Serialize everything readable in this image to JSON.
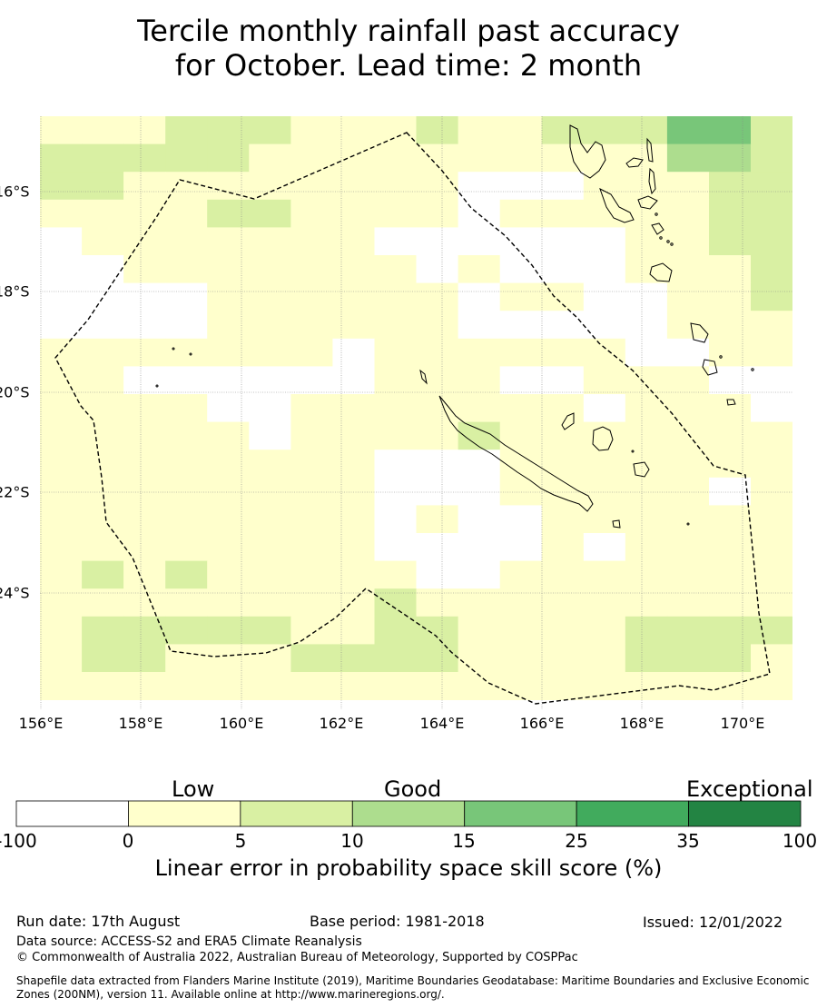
{
  "title": {
    "line1": "Tercile monthly rainfall past accuracy",
    "line2": "for October. Lead time: 2 month"
  },
  "map": {
    "longitude_labels": [
      "156°E",
      "158°E",
      "160°E",
      "162°E",
      "164°E",
      "166°E",
      "168°E",
      "170°E"
    ],
    "latitude_labels": [
      "16°S",
      "18°S",
      "20°S",
      "22°S",
      "24°S"
    ],
    "boundary": "dashed EEZ outline",
    "coastlines": "New Caledonia, Loyalty Islands, Vanuatu",
    "gridlines": true
  },
  "colorbar": {
    "categories": [
      "Low",
      "Good",
      "Exceptional"
    ],
    "boundaries": [
      "-100",
      "0",
      "5",
      "10",
      "15",
      "25",
      "35",
      "100"
    ],
    "colors": [
      "#ffffff",
      "#ffffcc",
      "#d9f0a3",
      "#addd8e",
      "#78c679",
      "#41ab5d",
      "#238443"
    ],
    "title": "Linear error in probability space skill score (%)"
  },
  "footer": {
    "run_date": "Run date: 17th August",
    "base_period": "Base period: 1981-2018",
    "issued": "Issued: 12/01/2022",
    "data_source": "Data source: ACCESS-S2 and ERA5 Climate Reanalysis",
    "copyright": "© Commonwealth of Australia 2022, Australian Bureau of Meteorology, Supported by COSPPac",
    "shapefile_line1": "Shapefile data extracted from Flanders Marine Institute (2019), Maritime Boundaries Geodatabase: Maritime Boundaries and Exclusive Economic",
    "shapefile_line2": "Zones (200NM), version 11. Available online at http://www.marineregions.org/."
  }
}
